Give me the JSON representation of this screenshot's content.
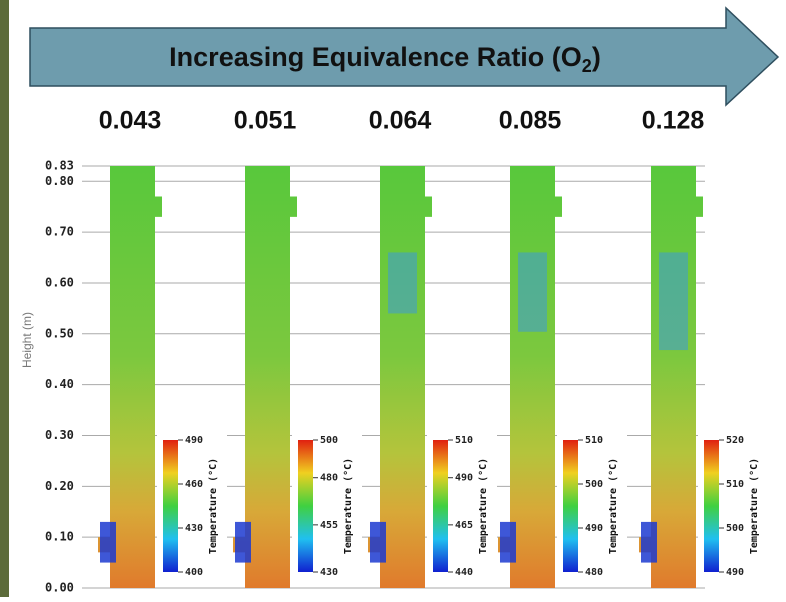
{
  "banner": {
    "title": "Increasing Equivalence Ratio (O",
    "title_sub": "2",
    "title_end": ")"
  },
  "ratios": [
    "0.043",
    "0.051",
    "0.064",
    "0.085",
    "0.128"
  ],
  "y_axis": {
    "label": "Height (m)",
    "range": [
      0,
      0.83
    ],
    "ticks": [
      {
        "value": 0,
        "label": "0.00"
      },
      {
        "value": 0.1,
        "label": "0.10"
      },
      {
        "value": 0.2,
        "label": "0.20"
      },
      {
        "value": 0.3,
        "label": "0.30"
      },
      {
        "value": 0.4,
        "label": "0.40"
      },
      {
        "value": 0.5,
        "label": "0.50"
      },
      {
        "value": 0.6,
        "label": "0.60"
      },
      {
        "value": 0.7,
        "label": "0.70"
      },
      {
        "value": 0.8,
        "label": "0.80"
      },
      {
        "value": 0.83,
        "label": "0.83"
      }
    ]
  },
  "panels": [
    {
      "colorbar": {
        "title": "Temperature (°C)",
        "range": [
          400,
          490
        ],
        "ticks": [
          490,
          460,
          430,
          400
        ]
      }
    },
    {
      "colorbar": {
        "title": "Temperature (°C)",
        "range": [
          430,
          500
        ],
        "ticks": [
          500,
          480,
          455,
          430
        ]
      }
    },
    {
      "colorbar": {
        "title": "Temperature (°C)",
        "range": [
          440,
          510
        ],
        "ticks": [
          510,
          490,
          465,
          440
        ]
      }
    },
    {
      "colorbar": {
        "title": "Temperature (°C)",
        "range": [
          480,
          510
        ],
        "ticks": [
          510,
          500,
          490,
          480
        ]
      }
    },
    {
      "colorbar": {
        "title": "Temperature (°C)",
        "range": [
          490,
          520
        ],
        "ticks": [
          520,
          510,
          500,
          490
        ]
      }
    }
  ]
}
